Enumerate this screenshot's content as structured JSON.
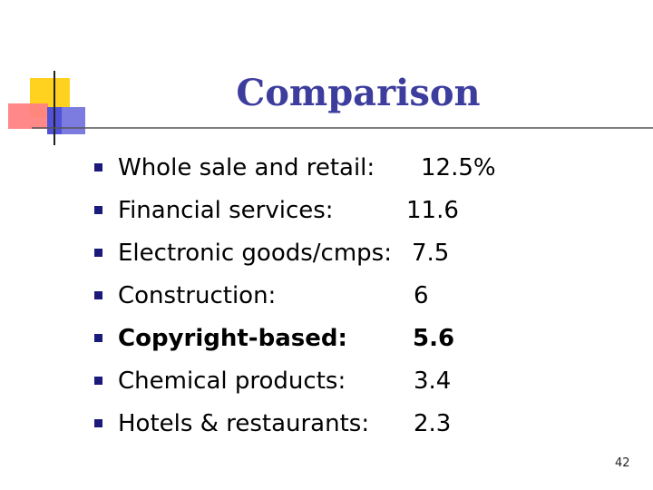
{
  "slide": {
    "title": "Comparison",
    "page_number": "42"
  },
  "bullets": [
    {
      "label": "Whole sale and retail:",
      "value": "12.5%",
      "bold": false
    },
    {
      "label": "Financial services:",
      "value": "11.6",
      "bold": false
    },
    {
      "label": "Electronic goods/cmps:",
      "value": "7.5",
      "bold": false
    },
    {
      "label": "Construction:",
      "value": "6",
      "bold": false
    },
    {
      "label": "Copyright-based:",
      "value": "5.6",
      "bold": true
    },
    {
      "label": "Chemical products:",
      "value": "3.4",
      "bold": false
    },
    {
      "label": "Hotels & restaurants:",
      "value": "2.3",
      "bold": false
    }
  ],
  "colors": {
    "title": "#3d3d9e",
    "bullet_marker": "#1a1a7a",
    "deco_yellow": "#ffd21f",
    "deco_red": "#ff4a4a",
    "deco_blue": "#4b4bd6"
  }
}
